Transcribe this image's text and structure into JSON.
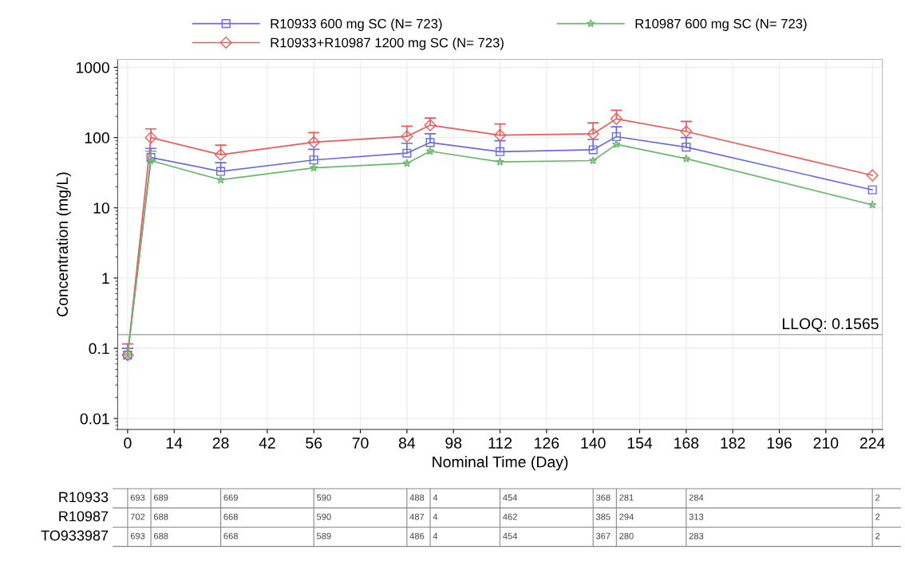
{
  "chart_data": {
    "type": "line",
    "xlabel": "Nominal Time (Day)",
    "ylabel": "Concentration (mg/L)",
    "x": [
      0,
      7,
      28,
      56,
      84,
      91,
      112,
      140,
      147,
      168,
      224
    ],
    "xlim": [
      -3,
      227
    ],
    "xticks": [
      0,
      14,
      28,
      42,
      56,
      70,
      84,
      98,
      112,
      126,
      140,
      154,
      168,
      182,
      196,
      210,
      224
    ],
    "log": true,
    "ylim": [
      0.007,
      1300
    ],
    "yticks": [
      0.01,
      0.1,
      1,
      10,
      100,
      1000
    ],
    "grid": true,
    "legend": "top",
    "line_style": "solid",
    "series": [
      {
        "name": "R10933 600 mg SC (N= 723)",
        "color": "#6a6ae8",
        "marker": "square",
        "values": [
          0.08,
          52,
          33,
          48,
          60,
          85,
          63,
          67,
          103,
          73,
          18
        ],
        "errors": [
          [
            0.08,
            0.1
          ],
          [
            52,
            70
          ],
          [
            33,
            44
          ],
          [
            48,
            68
          ],
          [
            60,
            83
          ],
          [
            85,
            113
          ],
          [
            63,
            90
          ],
          [
            67,
            94
          ],
          [
            103,
            142
          ],
          [
            73,
            100
          ],
          null
        ]
      },
      {
        "name": "R10933+R10987 1200 mg SC (N= 723)",
        "color": "#ec5a5a",
        "marker": "diamond",
        "values": [
          0.08,
          100,
          57,
          86,
          104,
          150,
          108,
          113,
          185,
          122,
          29
        ],
        "errors": [
          [
            0.08,
            0.115
          ],
          [
            100,
            133
          ],
          [
            57,
            78
          ],
          [
            86,
            118
          ],
          [
            104,
            145
          ],
          [
            150,
            190
          ],
          [
            108,
            156
          ],
          [
            113,
            162
          ],
          [
            185,
            245
          ],
          [
            122,
            170
          ],
          null
        ]
      },
      {
        "name": "R10987 600 mg SC (N= 723)",
        "color": "#6ab86a",
        "marker": "star",
        "values": [
          0.08,
          47,
          25,
          37,
          43,
          64,
          45,
          47,
          80,
          50,
          11
        ],
        "errors": [
          null,
          [
            47,
            64
          ],
          null,
          null,
          null,
          null,
          null,
          null,
          null,
          null,
          null
        ]
      }
    ],
    "ref_lines": [
      {
        "axis": "y",
        "value": 0.1565,
        "label": "LLOQ: 0.1565",
        "color": "#999999",
        "line_style": "solid"
      }
    ],
    "annotations": [
      "R10933",
      "693",
      "689",
      "669",
      "590",
      "488",
      "4",
      "454",
      "368",
      "281",
      "284",
      "2",
      "R10987",
      "702",
      "688",
      "668",
      "590",
      "487",
      "4",
      "462",
      "385",
      "294",
      "313",
      "2",
      "TO933987",
      "693",
      "688",
      "668",
      "589",
      "486",
      "4",
      "454",
      "367",
      "280",
      "283",
      "2"
    ]
  }
}
